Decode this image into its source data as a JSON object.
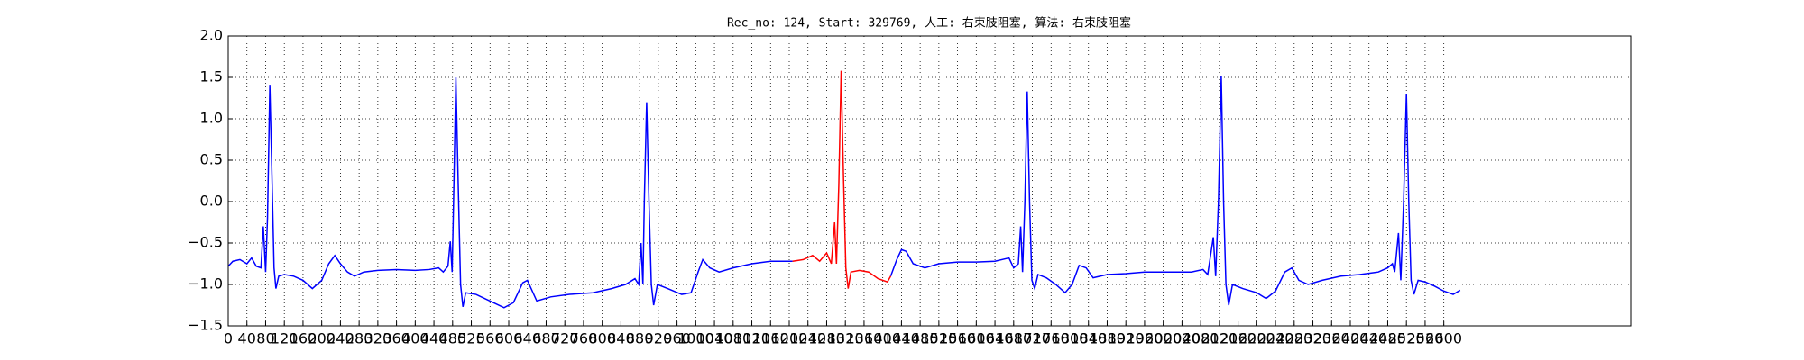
{
  "chart_data": {
    "type": "line",
    "title": "Rec_no: 124, Start: 329769, 人工: 右束肢阻塞, 算法: 右束肢阻塞",
    "grid": true,
    "xlim": [
      0,
      3000
    ],
    "ylim": [
      -1.5,
      2.0
    ],
    "xticks": [
      0,
      40,
      80,
      120,
      160,
      200,
      240,
      280,
      320,
      360,
      400,
      440,
      480,
      520,
      560,
      600,
      640,
      680,
      720,
      760,
      800,
      840,
      880,
      920,
      960,
      1000,
      1040,
      1080,
      1120,
      1160,
      1200,
      1240,
      1280,
      1320,
      1360,
      1400,
      1440,
      1480,
      1520,
      1560,
      1600,
      1640,
      1680,
      1720,
      1760,
      1800,
      1840,
      1880,
      1920,
      1960,
      2000,
      2040,
      2080,
      2120,
      2160,
      2200,
      2240,
      2280,
      2320,
      2360,
      2400,
      2440,
      2480,
      2520,
      2560,
      2600
    ],
    "yticks": [
      {
        "value": -1.5,
        "label": "−1.5"
      },
      {
        "value": -1.0,
        "label": "−1.0"
      },
      {
        "value": -0.5,
        "label": "−0.5"
      },
      {
        "value": 0,
        "label": "0.0"
      },
      0.5,
      {
        "value": 1.0,
        "label": "1.0"
      },
      1.5,
      {
        "value": 2.0,
        "label": "2.0"
      }
    ],
    "series": [
      {
        "color": "#0000ff",
        "x": [
          0,
          10,
          25,
          40,
          50,
          60,
          70,
          75,
          80,
          84,
          89,
          94,
          98,
          102,
          108,
          120,
          140,
          160,
          180,
          200,
          215,
          228,
          240,
          255,
          270,
          290,
          320,
          360,
          400,
          430,
          450,
          460,
          470,
          475,
          479,
          482,
          487,
          492,
          497,
          502,
          508,
          530,
          560,
          590,
          610,
          630,
          640,
          660,
          690,
          730,
          780,
          820,
          850,
          870,
          878,
          883,
          887,
          890,
          895,
          900,
          905,
          910,
          918,
          940,
          970,
          990,
          1005,
          1015,
          1030,
          1050,
          1080,
          1120,
          1160,
          1207,
          1300,
          1417,
          1430,
          1440,
          1450,
          1465,
          1490,
          1520,
          1560,
          1600,
          1640,
          1670,
          1680,
          1690,
          1695,
          1699,
          1704,
          1709,
          1714,
          1719,
          1725,
          1732,
          1750,
          1770,
          1790,
          1805,
          1820,
          1835,
          1850,
          1880,
          1920,
          1960,
          2000,
          2060,
          2085,
          2095,
          2107,
          2112,
          2118,
          2124,
          2129,
          2134,
          2140,
          2148,
          2170,
          2200,
          2220,
          2240,
          2260,
          2275,
          2290,
          2310,
          2340,
          2380,
          2420,
          2460,
          2480,
          2490,
          2495,
          2503,
          2508,
          2514,
          2520,
          2525,
          2530,
          2536,
          2545,
          2560,
          2580,
          2600,
          2620,
          2635
        ],
        "values": [
          -0.78,
          -0.72,
          -0.7,
          -0.75,
          -0.68,
          -0.78,
          -0.8,
          -0.3,
          -0.85,
          -0.2,
          1.4,
          0.2,
          -0.8,
          -1.05,
          -0.9,
          -0.88,
          -0.9,
          -0.95,
          -1.05,
          -0.95,
          -0.75,
          -0.65,
          -0.75,
          -0.85,
          -0.9,
          -0.85,
          -0.83,
          -0.82,
          -0.83,
          -0.82,
          -0.8,
          -0.85,
          -0.78,
          -0.48,
          -0.85,
          0.0,
          1.5,
          0.2,
          -1.0,
          -1.27,
          -1.1,
          -1.12,
          -1.2,
          -1.28,
          -1.22,
          -0.98,
          -0.95,
          -1.2,
          -1.15,
          -1.12,
          -1.1,
          -1.05,
          -1.0,
          -0.93,
          -1.0,
          -0.5,
          -1.0,
          0.0,
          1.2,
          0.0,
          -1.0,
          -1.25,
          -1.0,
          -1.05,
          -1.12,
          -1.1,
          -0.85,
          -0.7,
          -0.8,
          -0.85,
          -0.8,
          -0.75,
          -0.72,
          -0.72,
          null,
          -0.9,
          -0.7,
          -0.58,
          -0.6,
          -0.75,
          -0.8,
          -0.75,
          -0.73,
          -0.73,
          -0.72,
          -0.68,
          -0.8,
          -0.75,
          -0.3,
          -0.85,
          0.0,
          1.33,
          0.0,
          -0.95,
          -1.05,
          -0.88,
          -0.92,
          -1.0,
          -1.1,
          -1.0,
          -0.77,
          -0.8,
          -0.92,
          -0.88,
          -0.87,
          -0.85,
          -0.85,
          -0.85,
          -0.82,
          -0.88,
          -0.43,
          -0.9,
          0.0,
          1.52,
          0.0,
          -1.0,
          -1.25,
          -1.0,
          -1.05,
          -1.1,
          -1.17,
          -1.08,
          -0.85,
          -0.8,
          -0.95,
          -1.0,
          -0.95,
          -0.9,
          -0.88,
          -0.85,
          -0.8,
          -0.75,
          -0.85,
          -0.38,
          -0.95,
          0.0,
          1.3,
          0.0,
          -0.95,
          -1.12,
          -0.95,
          -0.97,
          -1.02,
          -1.08,
          -1.12,
          -1.07
        ]
      },
      {
        "color": "#ff0000",
        "x": [
          1207,
          1230,
          1250,
          1265,
          1280,
          1290,
          1297,
          1301,
          1306,
          1311,
          1316,
          1321,
          1326,
          1332,
          1350,
          1370,
          1390,
          1410,
          1417
        ],
        "values": [
          -0.72,
          -0.7,
          -0.65,
          -0.72,
          -0.62,
          -0.75,
          -0.25,
          -0.75,
          0.2,
          1.58,
          0.3,
          -0.8,
          -1.05,
          -0.85,
          -0.83,
          -0.85,
          -0.93,
          -0.97,
          -0.9
        ]
      }
    ]
  }
}
